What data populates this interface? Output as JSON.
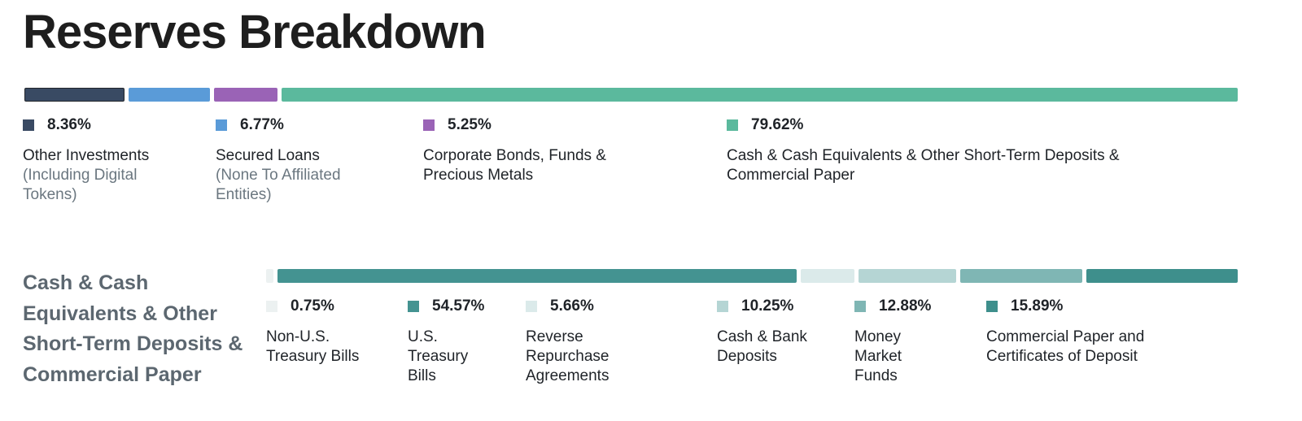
{
  "title": "Reserves Breakdown",
  "chart_data": [
    {
      "type": "bar",
      "orientation": "horizontal-stacked-100",
      "title": "Reserves Breakdown",
      "unit": "%",
      "series": [
        {
          "percent": "8.36%",
          "value": 8.36,
          "label": "Other Investments",
          "sublabel": "(Including Digital Tokens)",
          "color": "#394a63"
        },
        {
          "percent": "6.77%",
          "value": 6.77,
          "label": "Secured Loans",
          "sublabel": "(None To Affiliated Entities)",
          "color": "#5a9bd8"
        },
        {
          "percent": "5.25%",
          "value": 5.25,
          "label": "Corporate Bonds, Funds & Precious Metals",
          "sublabel": "",
          "color": "#9a63b6"
        },
        {
          "percent": "79.62%",
          "value": 79.62,
          "label": "Cash & Cash Equivalents & Other Short-Term Deposits & Commercial Paper",
          "sublabel": "",
          "color": "#5bb99d"
        }
      ]
    },
    {
      "type": "bar",
      "orientation": "horizontal-stacked-100",
      "title": "Cash & Cash Equivalents & Other Short-Term Deposits & Commercial Paper",
      "unit": "%",
      "series": [
        {
          "percent": "0.75%",
          "value": 0.75,
          "label": "Non-U.S. Treasury Bills",
          "color": "#ecf1f1"
        },
        {
          "percent": "54.57%",
          "value": 54.57,
          "label": "U.S. Treasury Bills",
          "color": "#449391"
        },
        {
          "percent": "5.66%",
          "value": 5.66,
          "label": "Reverse Repurchase Agreements",
          "color": "#dbeaea"
        },
        {
          "percent": "10.25%",
          "value": 10.25,
          "label": "Cash & Bank Deposits",
          "color": "#b5d5d4"
        },
        {
          "percent": "12.88%",
          "value": 12.88,
          "label": "Money Market Funds",
          "color": "#7fb6b4"
        },
        {
          "percent": "15.89%",
          "value": 15.89,
          "label": "Commercial Paper and Certificates of Deposit",
          "color": "#3e8f8c"
        }
      ]
    }
  ]
}
